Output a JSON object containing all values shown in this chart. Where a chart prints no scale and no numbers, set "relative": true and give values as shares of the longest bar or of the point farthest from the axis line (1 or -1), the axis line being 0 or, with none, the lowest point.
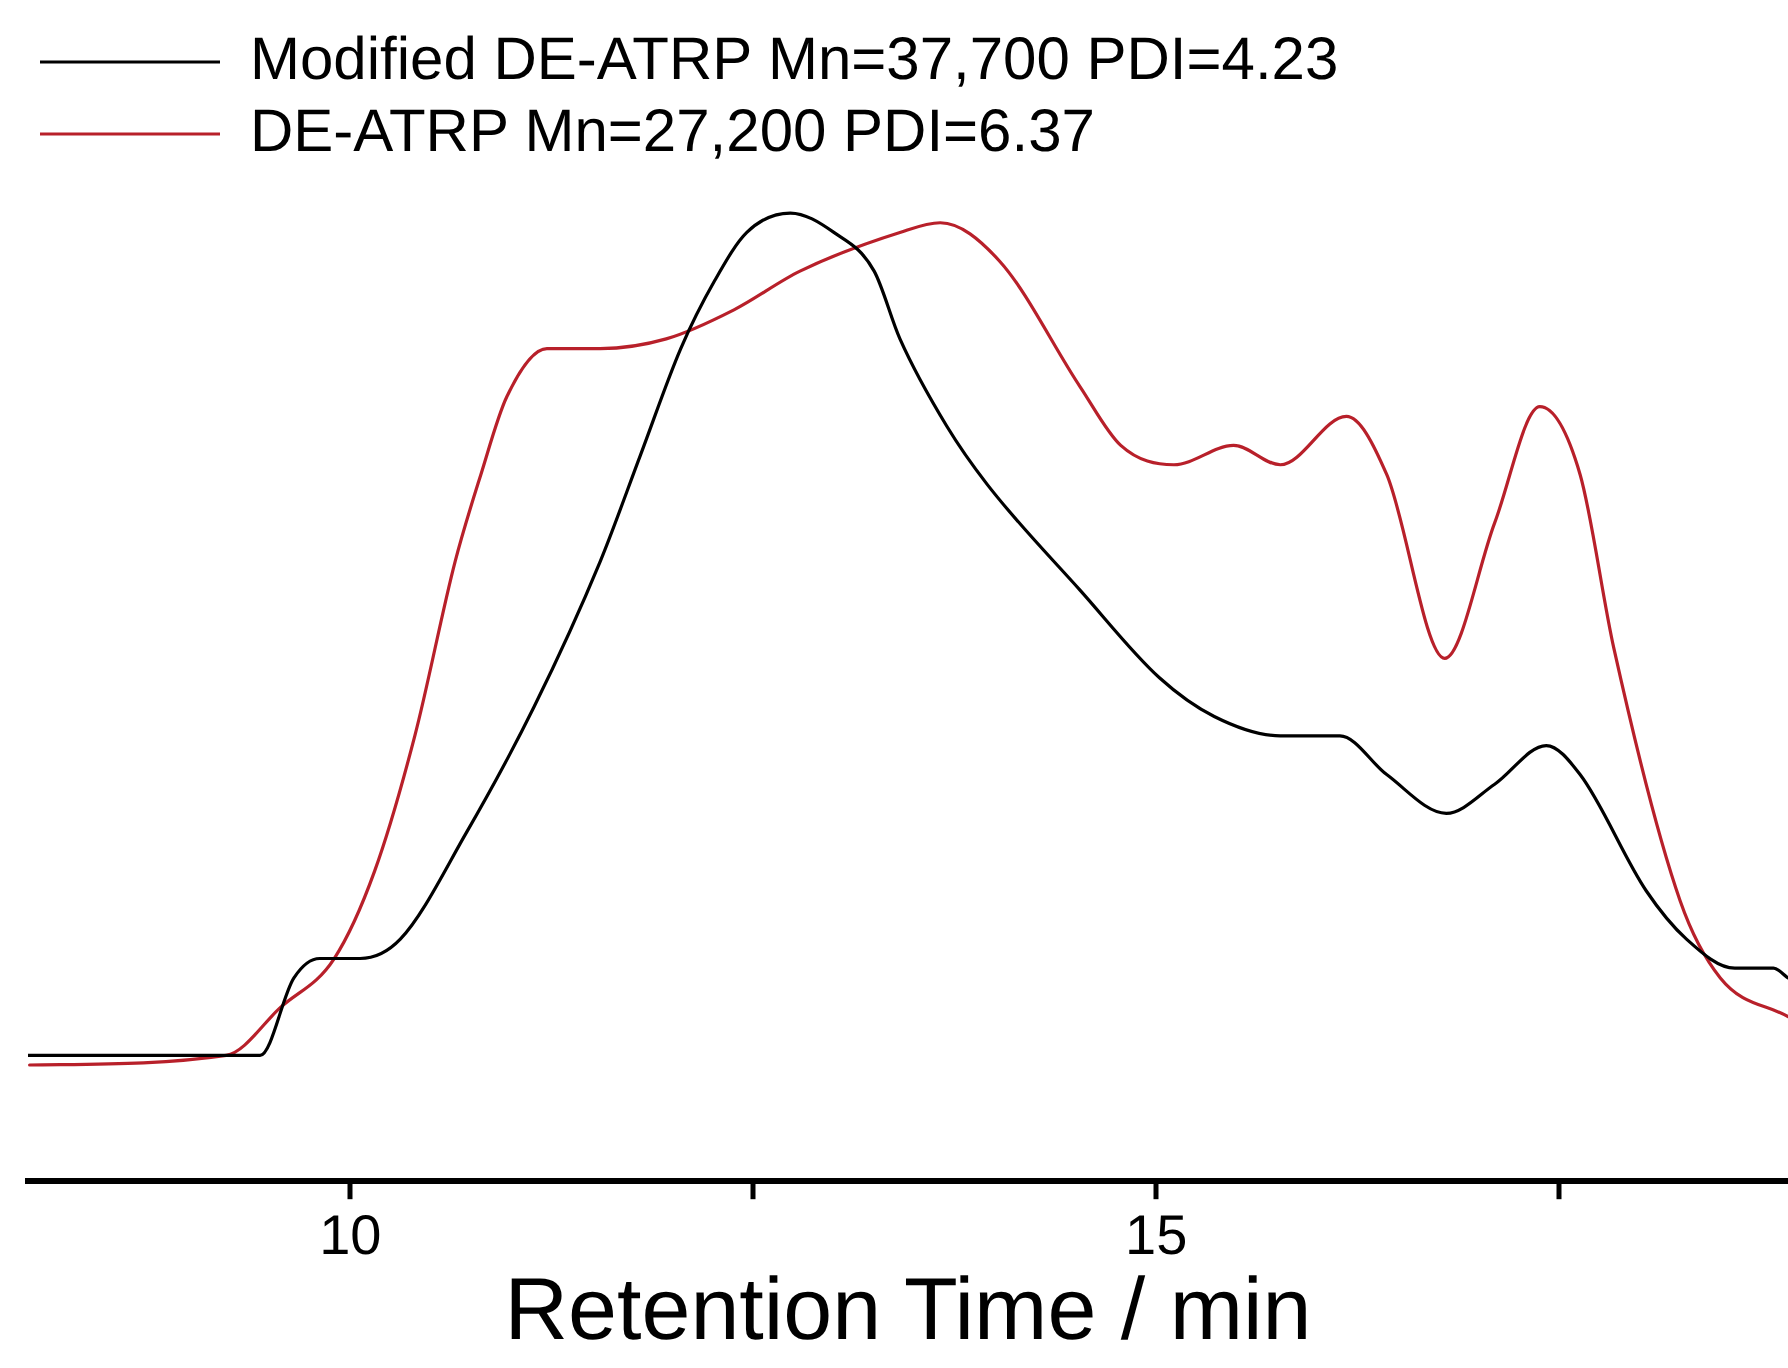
{
  "chart_data": {
    "type": "line",
    "relative": true,
    "xlabel": "Retention Time / min",
    "xlim": [
      8,
      18.92
    ],
    "xticks": [
      10,
      {
        "value": 12.5,
        "label": null
      },
      15,
      {
        "value": 17.5,
        "label": null
      }
    ],
    "legend": "top left",
    "grid": false,
    "marker": "none",
    "line_style": "solid",
    "series": [
      {
        "name": "Modified DE-ATRP Mn=37,700 PDI=4.23",
        "color": "#000000",
        "x": [
          8.0,
          9.07,
          9.44,
          9.65,
          9.81,
          10.06,
          10.31,
          10.72,
          11.14,
          11.55,
          11.8,
          12.05,
          12.26,
          12.46,
          12.73,
          13.0,
          13.25,
          13.41,
          13.7,
          13.95,
          14.53,
          15.02,
          15.36,
          15.77,
          16.14,
          16.43,
          16.8,
          17.1,
          17.42,
          17.63,
          18.04,
          18.29,
          18.59,
          18.83,
          18.92
        ],
        "values": [
          0.13,
          0.13,
          0.13,
          0.21,
          0.23,
          0.23,
          0.25,
          0.36,
          0.49,
          0.64,
          0.75,
          0.86,
          0.93,
          0.98,
          1.0,
          0.98,
          0.94,
          0.87,
          0.78,
          0.72,
          0.61,
          0.52,
          0.48,
          0.46,
          0.46,
          0.42,
          0.38,
          0.41,
          0.45,
          0.42,
          0.3,
          0.25,
          0.22,
          0.22,
          0.21
        ]
      },
      {
        "name": "DE-ATRP Mn=27,200 PDI=6.37",
        "color": "#b8202a",
        "x": [
          8.01,
          9.23,
          9.57,
          9.9,
          10.15,
          10.4,
          10.65,
          10.81,
          10.97,
          11.22,
          11.55,
          11.96,
          12.38,
          12.79,
          13.41,
          13.66,
          14.03,
          14.53,
          14.78,
          15.11,
          15.48,
          15.77,
          16.18,
          16.43,
          16.79,
          17.1,
          17.38,
          17.63,
          17.84,
          18.25,
          18.5,
          18.92
        ],
        "values": [
          0.12,
          0.13,
          0.18,
          0.23,
          0.32,
          0.46,
          0.64,
          0.73,
          0.81,
          0.86,
          0.86,
          0.87,
          0.9,
          0.94,
          0.98,
          0.99,
          0.95,
          0.82,
          0.76,
          0.74,
          0.76,
          0.74,
          0.79,
          0.73,
          0.54,
          0.68,
          0.8,
          0.73,
          0.55,
          0.29,
          0.21,
          0.17
        ]
      }
    ]
  }
}
